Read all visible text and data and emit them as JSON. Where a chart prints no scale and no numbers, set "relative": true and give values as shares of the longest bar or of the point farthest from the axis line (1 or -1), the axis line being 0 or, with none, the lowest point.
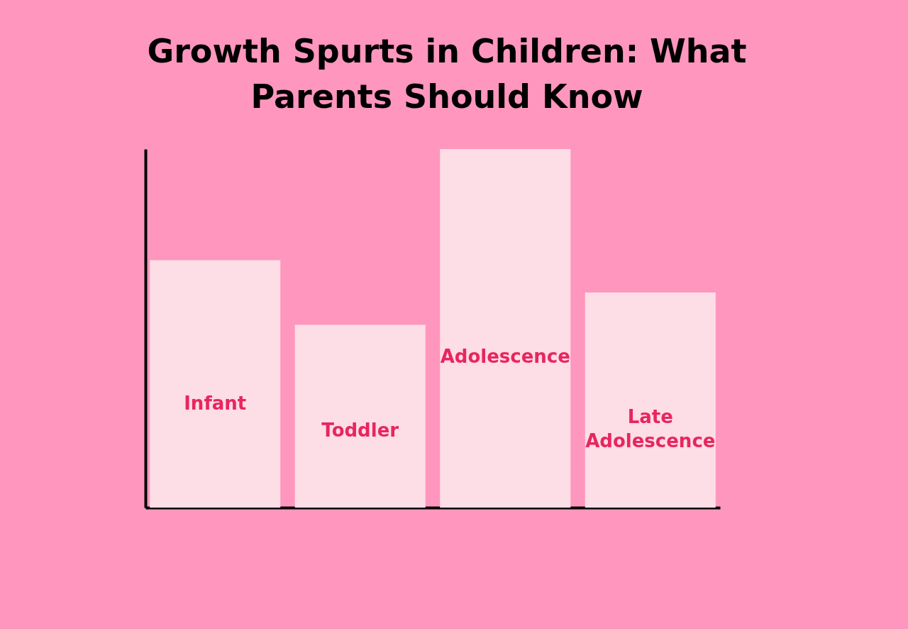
{
  "chart_data": {
    "type": "bar",
    "title": "Growth Spurts in Children: What Parents Should Know",
    "relative": true,
    "categories": [
      "Infant",
      "Toddler",
      "Adolescence",
      "Late Adolescence"
    ],
    "values": [
      0.69,
      0.51,
      1,
      0.6
    ],
    "color": "#fddde6",
    "grid": false
  }
}
